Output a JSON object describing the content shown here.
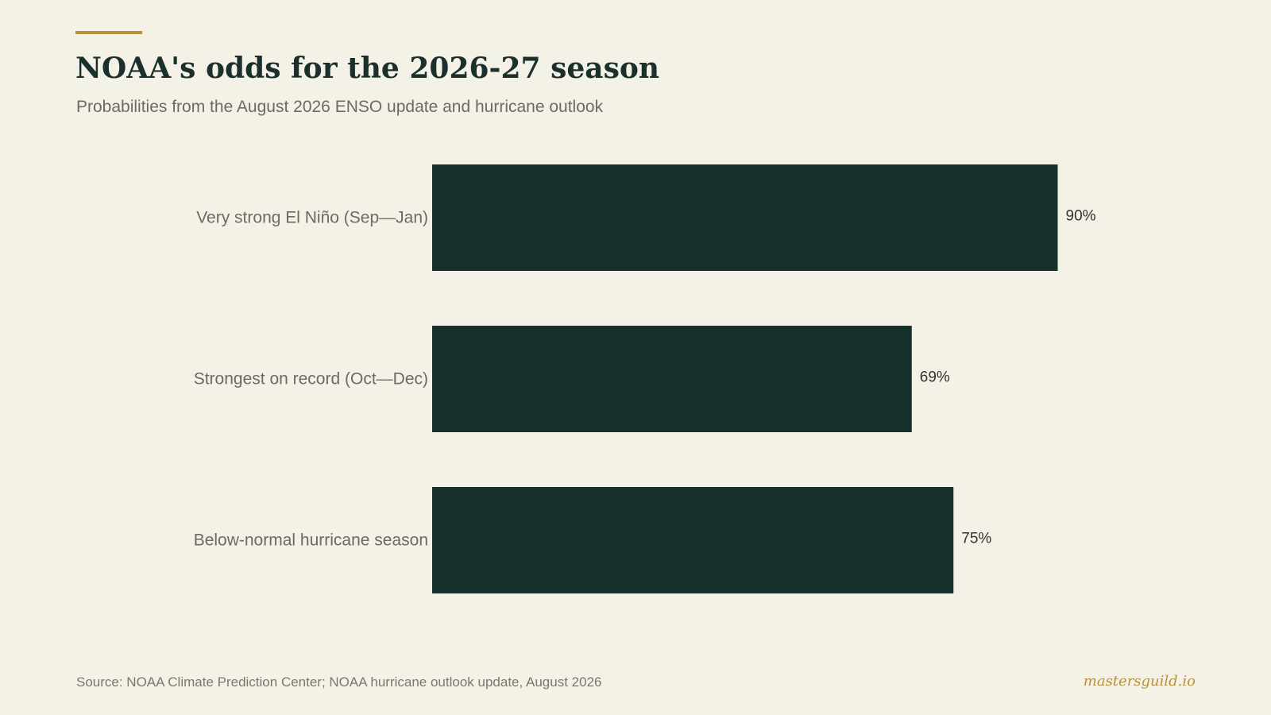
{
  "header": {
    "title": "NOAA's odds for the 2026-27 season",
    "subtitle": "Probabilities from the August 2026 ENSO update and hurricane outlook"
  },
  "chart_data": {
    "type": "bar",
    "orientation": "horizontal",
    "categories": [
      "Very strong El Niño (Sep—Jan)",
      "Strongest on record (Oct—Dec)",
      "Below-normal hurricane season"
    ],
    "values": [
      90,
      69,
      75
    ],
    "value_labels": [
      "90%",
      "69%",
      "75%"
    ],
    "unit": "%",
    "xlim": [
      0,
      100
    ],
    "grid": false,
    "legend": "none",
    "bar_color": "#18302c"
  },
  "footer": {
    "source": "Source: NOAA Climate Prediction Center; NOAA hurricane outlook update, August 2026",
    "brand": "mastersguild.io"
  },
  "colors": {
    "background": "#f4f1e6",
    "accent": "#b8913a",
    "bar": "#18302c",
    "title": "#1b302c",
    "muted_text": "#6e6a62"
  }
}
